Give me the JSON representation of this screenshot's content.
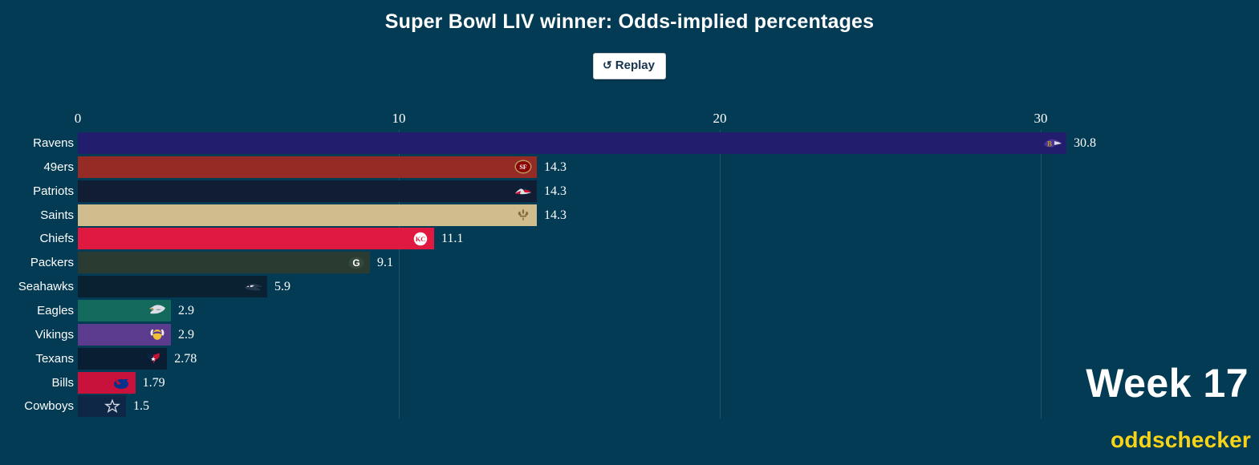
{
  "colors": {
    "background": "#043B54",
    "title_text": "#FFFFFF",
    "axis_text": "#FFFFFF",
    "gridline": "rgba(255,255,255,0.13)",
    "replay_text": "#16344F",
    "brand_yellow": "#F7D417"
  },
  "header": {
    "title": "Super Bowl LIV winner: Odds-implied percentages"
  },
  "controls": {
    "replay": {
      "icon": "↺",
      "label": "Replay"
    }
  },
  "chart_data": {
    "type": "bar",
    "orientation": "horizontal",
    "title": "Super Bowl LIV winner: Odds-implied percentages",
    "xlabel": "",
    "ylabel": "",
    "x_axis": {
      "ticks": [
        "0",
        "10",
        "20",
        "30"
      ],
      "tick_values": [
        0,
        10,
        20,
        30
      ],
      "range": [
        0,
        36.8
      ],
      "grid": true
    },
    "value_unit": "odds-implied percentage",
    "categories": [
      "Ravens",
      "49ers",
      "Patriots",
      "Saints",
      "Chiefs",
      "Packers",
      "Seahawks",
      "Eagles",
      "Vikings",
      "Texans",
      "Bills",
      "Cowboys"
    ],
    "values": [
      30.8,
      14.3,
      14.3,
      14.3,
      11.1,
      9.1,
      5.9,
      2.9,
      2.9,
      2.78,
      1.79,
      1.5
    ],
    "teams": [
      {
        "name": "Ravens",
        "value": 30.8,
        "value_label": "30.8",
        "color": "#231D6D",
        "logo": "ravens-logo-icon"
      },
      {
        "name": "49ers",
        "value": 14.3,
        "value_label": "14.3",
        "color": "#962A24",
        "logo": "49ers-logo-icon"
      },
      {
        "name": "Patriots",
        "value": 14.3,
        "value_label": "14.3",
        "color": "#101D33",
        "logo": "patriots-logo-icon"
      },
      {
        "name": "Saints",
        "value": 14.3,
        "value_label": "14.3",
        "color": "#D1BC8E",
        "logo": "saints-logo-icon"
      },
      {
        "name": "Chiefs",
        "value": 11.1,
        "value_label": "11.1",
        "color": "#DF1940",
        "logo": "chiefs-logo-icon"
      },
      {
        "name": "Packers",
        "value": 9.1,
        "value_label": "9.1",
        "color": "#2A3B31",
        "logo": "packers-logo-icon"
      },
      {
        "name": "Seahawks",
        "value": 5.9,
        "value_label": "5.9",
        "color": "#0A2131",
        "logo": "seahawks-logo-icon"
      },
      {
        "name": "Eagles",
        "value": 2.9,
        "value_label": "2.9",
        "color": "#136A5C",
        "logo": "eagles-logo-icon"
      },
      {
        "name": "Vikings",
        "value": 2.9,
        "value_label": "2.9",
        "color": "#5A3B8E",
        "logo": "vikings-logo-icon"
      },
      {
        "name": "Texans",
        "value": 2.78,
        "value_label": "2.78",
        "color": "#0A1E33",
        "logo": "texans-logo-icon"
      },
      {
        "name": "Bills",
        "value": 1.79,
        "value_label": "1.79",
        "color": "#C8123B",
        "logo": "bills-logo-icon"
      },
      {
        "name": "Cowboys",
        "value": 1.5,
        "value_label": "1.5",
        "color": "#0E2747",
        "logo": "cowboys-logo-icon"
      }
    ]
  },
  "footer": {
    "week_label": "Week 17",
    "brand": "oddschecker"
  }
}
